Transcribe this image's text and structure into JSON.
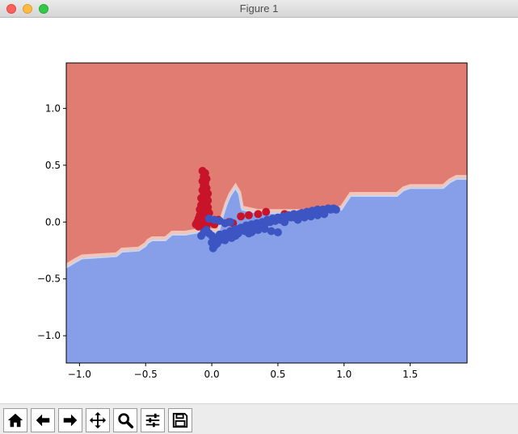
{
  "window": {
    "title": "Figure 1"
  },
  "chart_data": {
    "type": "scatter",
    "title": "",
    "xlabel": "",
    "ylabel": "",
    "xlim": [
      -1.1,
      1.93
    ],
    "ylim": [
      -1.24,
      1.4
    ],
    "x_ticks": [
      "−1.0",
      "−0.5",
      "0.0",
      "0.5",
      "1.0",
      "1.5"
    ],
    "y_ticks": [
      "1.0",
      "0.5",
      "0.0",
      "−0.5",
      "−1.0"
    ],
    "x_tick_values": [
      -1.0,
      -0.5,
      0.0,
      0.5,
      1.0,
      1.5
    ],
    "y_tick_values": [
      1.0,
      0.5,
      0.0,
      -0.5,
      -1.0
    ],
    "background_regions": {
      "upper_color": "#e17c72",
      "lower_color": "#869fe8",
      "boundary": [
        [
          -1.1,
          -0.38
        ],
        [
          -1.03,
          -0.33
        ],
        [
          -0.98,
          -0.3
        ],
        [
          -0.72,
          -0.28
        ],
        [
          -0.68,
          -0.24
        ],
        [
          -0.55,
          -0.23
        ],
        [
          -0.5,
          -0.19
        ],
        [
          -0.48,
          -0.16
        ],
        [
          -0.45,
          -0.14
        ],
        [
          -0.35,
          -0.14
        ],
        [
          -0.33,
          -0.12
        ],
        [
          -0.3,
          -0.09
        ],
        [
          -0.25,
          -0.09
        ],
        [
          -0.2,
          -0.09
        ],
        [
          -0.1,
          -0.07
        ],
        [
          0.05,
          -0.07
        ],
        [
          0.08,
          0.06
        ],
        [
          0.11,
          0.17
        ],
        [
          0.14,
          0.25
        ],
        [
          0.18,
          0.32
        ],
        [
          0.21,
          0.26
        ],
        [
          0.23,
          0.13
        ],
        [
          0.35,
          0.1
        ],
        [
          0.85,
          0.1
        ],
        [
          0.88,
          0.12
        ],
        [
          0.98,
          0.13
        ],
        [
          1.02,
          0.2
        ],
        [
          1.05,
          0.25
        ],
        [
          1.4,
          0.25
        ],
        [
          1.45,
          0.3
        ],
        [
          1.5,
          0.32
        ],
        [
          1.75,
          0.32
        ],
        [
          1.8,
          0.37
        ],
        [
          1.85,
          0.4
        ],
        [
          1.93,
          0.4
        ]
      ]
    },
    "series": [
      {
        "color": "#c8142a",
        "points": [
          [
            -0.07,
            0.45
          ],
          [
            -0.05,
            0.43
          ],
          [
            -0.06,
            0.4
          ],
          [
            -0.04,
            0.38
          ],
          [
            -0.07,
            0.36
          ],
          [
            -0.05,
            0.34
          ],
          [
            -0.06,
            0.32
          ],
          [
            -0.04,
            0.3
          ],
          [
            -0.07,
            0.28
          ],
          [
            -0.05,
            0.26
          ],
          [
            -0.03,
            0.25
          ],
          [
            -0.06,
            0.24
          ],
          [
            -0.04,
            0.22
          ],
          [
            -0.08,
            0.21
          ],
          [
            -0.05,
            0.2
          ],
          [
            -0.03,
            0.19
          ],
          [
            -0.06,
            0.18
          ],
          [
            -0.04,
            0.16
          ],
          [
            -0.08,
            0.15
          ],
          [
            -0.05,
            0.14
          ],
          [
            -0.03,
            0.13
          ],
          [
            -0.06,
            0.12
          ],
          [
            -0.09,
            0.11
          ],
          [
            -0.04,
            0.1
          ],
          [
            -0.07,
            0.09
          ],
          [
            -0.02,
            0.08
          ],
          [
            -0.05,
            0.07
          ],
          [
            -0.09,
            0.06
          ],
          [
            -0.03,
            0.05
          ],
          [
            -0.06,
            0.04
          ],
          [
            -0.1,
            0.03
          ],
          [
            -0.01,
            0.02
          ],
          [
            -0.07,
            0.01
          ],
          [
            -0.11,
            0.0
          ],
          [
            0.0,
            0.0
          ],
          [
            -0.08,
            -0.01
          ],
          [
            -0.12,
            -0.02
          ],
          [
            -0.04,
            -0.03
          ],
          [
            -0.1,
            -0.04
          ],
          [
            -0.06,
            -0.05
          ],
          [
            0.02,
            -0.02
          ],
          [
            0.05,
            0.02
          ],
          [
            0.13,
            0.0
          ],
          [
            0.16,
            -0.01
          ],
          [
            0.22,
            0.05
          ],
          [
            0.28,
            0.06
          ],
          [
            0.35,
            0.07
          ],
          [
            0.41,
            0.09
          ],
          [
            0.55,
            0.07
          ],
          [
            0.63,
            0.04
          ]
        ]
      },
      {
        "color": "#3c55c3",
        "points": [
          [
            -0.02,
            0.03
          ],
          [
            0.02,
            0.02
          ],
          [
            0.06,
            0.01
          ],
          [
            0.1,
            -0.01
          ],
          [
            0.14,
            0.0
          ],
          [
            -0.08,
            -0.12
          ],
          [
            -0.06,
            -0.09
          ],
          [
            -0.04,
            -0.07
          ],
          [
            -0.02,
            -0.1
          ],
          [
            0.0,
            -0.12
          ],
          [
            0.02,
            -0.15
          ],
          [
            0.0,
            -0.18
          ],
          [
            0.02,
            -0.21
          ],
          [
            0.01,
            -0.23
          ],
          [
            0.04,
            -0.19
          ],
          [
            0.06,
            -0.16
          ],
          [
            0.08,
            -0.13
          ],
          [
            0.1,
            -0.1
          ],
          [
            0.12,
            -0.12
          ],
          [
            0.14,
            -0.08
          ],
          [
            0.16,
            -0.1
          ],
          [
            0.18,
            -0.06
          ],
          [
            0.2,
            -0.08
          ],
          [
            0.22,
            -0.05
          ],
          [
            0.24,
            -0.07
          ],
          [
            0.26,
            -0.03
          ],
          [
            0.28,
            -0.05
          ],
          [
            0.3,
            -0.02
          ],
          [
            0.32,
            -0.04
          ],
          [
            0.34,
            -0.01
          ],
          [
            0.36,
            -0.03
          ],
          [
            0.38,
            0.0
          ],
          [
            0.4,
            -0.02
          ],
          [
            0.42,
            0.02
          ],
          [
            0.44,
            0.0
          ],
          [
            0.46,
            0.03
          ],
          [
            0.48,
            0.01
          ],
          [
            0.5,
            0.04
          ],
          [
            0.52,
            0.02
          ],
          [
            0.54,
            0.05
          ],
          [
            0.56,
            0.03
          ],
          [
            0.58,
            0.06
          ],
          [
            0.6,
            0.04
          ],
          [
            0.62,
            0.07
          ],
          [
            0.64,
            0.05
          ],
          [
            0.66,
            0.07
          ],
          [
            0.68,
            0.08
          ],
          [
            0.7,
            0.06
          ],
          [
            0.72,
            0.09
          ],
          [
            0.74,
            0.07
          ],
          [
            0.76,
            0.1
          ],
          [
            0.78,
            0.08
          ],
          [
            0.8,
            0.11
          ],
          [
            0.82,
            0.09
          ],
          [
            0.84,
            0.11
          ],
          [
            0.86,
            0.1
          ],
          [
            0.88,
            0.12
          ],
          [
            0.9,
            0.11
          ],
          [
            0.92,
            0.12
          ],
          [
            0.94,
            0.11
          ],
          [
            0.2,
            -0.1
          ],
          [
            0.25,
            -0.08
          ],
          [
            0.3,
            -0.09
          ],
          [
            0.35,
            -0.07
          ],
          [
            0.4,
            -0.06
          ],
          [
            0.45,
            -0.08
          ],
          [
            0.5,
            -0.09
          ],
          [
            0.38,
            -0.04
          ],
          [
            0.28,
            -0.1
          ],
          [
            0.15,
            -0.14
          ],
          [
            0.1,
            -0.16
          ],
          [
            0.06,
            -0.11
          ],
          [
            0.18,
            -0.12
          ],
          [
            0.32,
            -0.07
          ],
          [
            0.55,
            0.0
          ],
          [
            0.65,
            0.02
          ],
          [
            0.7,
            0.04
          ],
          [
            0.75,
            0.05
          ],
          [
            0.8,
            0.06
          ],
          [
            0.85,
            0.07
          ]
        ]
      }
    ]
  },
  "toolbar": {
    "buttons": [
      {
        "name": "home-button",
        "icon": "home-icon"
      },
      {
        "name": "back-button",
        "icon": "arrow-left-icon"
      },
      {
        "name": "forward-button",
        "icon": "arrow-right-icon"
      },
      {
        "name": "pan-button",
        "icon": "move-icon"
      },
      {
        "name": "zoom-button",
        "icon": "magnifier-icon"
      },
      {
        "name": "configure-subplots-button",
        "icon": "sliders-icon"
      },
      {
        "name": "save-button",
        "icon": "floppy-disk-icon"
      }
    ]
  }
}
